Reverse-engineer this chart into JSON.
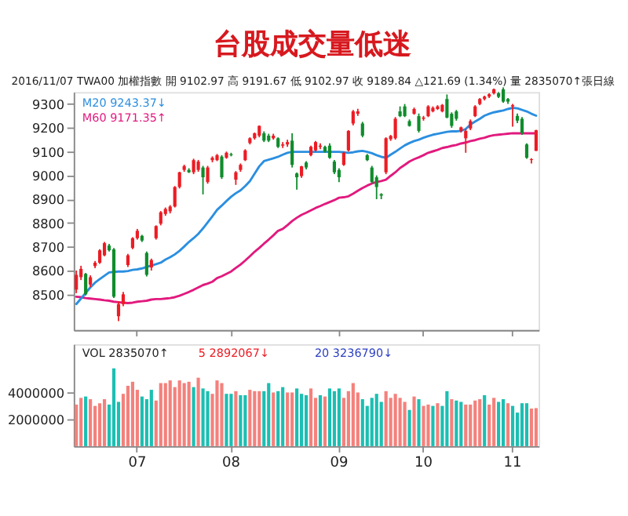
{
  "chart_data": [
    {
      "type": "candlestick",
      "title": "台股成交量低迷",
      "categories": [
        null,
        null,
        null,
        null,
        null,
        null,
        null,
        null,
        null,
        null,
        null,
        null,
        null,
        "07",
        null,
        null,
        null,
        null,
        null,
        null,
        null,
        null,
        null,
        null,
        null,
        null,
        null,
        null,
        null,
        null,
        null,
        null,
        null,
        "08",
        null,
        null,
        null,
        null,
        null,
        null,
        null,
        null,
        null,
        null,
        null,
        null,
        null,
        null,
        null,
        null,
        null,
        null,
        null,
        null,
        null,
        null,
        "09",
        null,
        null,
        null,
        null,
        null,
        null,
        null,
        null,
        null,
        null,
        null,
        null,
        null,
        null,
        null,
        null,
        null,
        "10",
        null,
        null,
        null,
        null,
        null,
        null,
        null,
        null,
        null,
        null,
        null,
        null,
        null,
        null,
        null,
        null,
        null,
        null,
        "11",
        null,
        null,
        null,
        null,
        null
      ],
      "ohlc": [
        [
          8520,
          8600,
          8505,
          8582
        ],
        [
          8572,
          8620,
          8560,
          8607
        ],
        [
          8586,
          8590,
          8495,
          8500
        ],
        [
          8541,
          8580,
          8530,
          8572
        ],
        [
          8619,
          8640,
          8610,
          8633
        ],
        [
          8633,
          8690,
          8628,
          8685
        ],
        [
          8664,
          8720,
          8660,
          8715
        ],
        [
          8705,
          8712,
          8680,
          8685
        ],
        [
          8689,
          8695,
          8485,
          8490
        ],
        [
          8408,
          8470,
          8387,
          8459
        ],
        [
          8459,
          8510,
          8450,
          8500
        ],
        [
          8623,
          8670,
          8615,
          8664
        ],
        [
          8695,
          8740,
          8690,
          8736
        ],
        [
          8736,
          8775,
          8730,
          8767
        ],
        [
          8746,
          8750,
          8720,
          8726
        ],
        [
          8674,
          8680,
          8575,
          8582
        ],
        [
          8613,
          8650,
          8600,
          8644
        ],
        [
          8736,
          8790,
          8730,
          8787
        ],
        [
          8797,
          8850,
          8790,
          8845
        ],
        [
          8838,
          8865,
          8830,
          8859
        ],
        [
          8849,
          8875,
          8840,
          8869
        ],
        [
          8869,
          8955,
          8865,
          8951
        ],
        [
          8951,
          9015,
          8945,
          9013
        ],
        [
          9023,
          9045,
          9015,
          9039
        ],
        [
          9023,
          9030,
          9010,
          9013
        ],
        [
          9013,
          9070,
          9005,
          9064
        ],
        [
          9023,
          9065,
          9015,
          9058
        ],
        [
          9033,
          9040,
          8920,
          8992
        ],
        [
          8972,
          9040,
          8965,
          9033
        ],
        [
          9064,
          9080,
          9055,
          9074
        ],
        [
          9064,
          9090,
          9060,
          9085
        ],
        [
          9079,
          9085,
          8985,
          8992
        ],
        [
          9074,
          9100,
          9070,
          9095
        ],
        [
          9089,
          9095,
          9080,
          9085
        ],
        [
          8982,
          9018,
          8960,
          9013
        ],
        [
          9023,
          9050,
          9015,
          9044
        ],
        [
          9064,
          9110,
          9060,
          9105
        ],
        [
          9136,
          9160,
          9130,
          9156
        ],
        [
          9156,
          9180,
          9150,
          9177
        ],
        [
          9167,
          9210,
          9160,
          9208
        ],
        [
          9177,
          9185,
          9140,
          9146
        ],
        [
          9167,
          9175,
          9140,
          9146
        ],
        [
          9156,
          9175,
          9150,
          9167
        ],
        [
          9156,
          9160,
          9115,
          9120
        ],
        [
          9125,
          9140,
          9115,
          9130
        ],
        [
          9130,
          9150,
          9120,
          9140
        ],
        [
          9146,
          9177,
          9033,
          9044
        ],
        [
          9008,
          9012,
          8940,
          8992
        ],
        [
          8997,
          9040,
          8990,
          9038
        ],
        [
          9054,
          9060,
          9025,
          9033
        ],
        [
          9085,
          9125,
          9080,
          9120
        ],
        [
          9105,
          9145,
          9100,
          9140
        ],
        [
          9120,
          9135,
          9110,
          9125
        ],
        [
          9120,
          9125,
          9095,
          9100
        ],
        [
          9125,
          9135,
          9070,
          9074
        ],
        [
          9058,
          9065,
          9005,
          9013
        ],
        [
          9023,
          9030,
          8972,
          8992
        ],
        [
          9044,
          9100,
          9040,
          9095
        ],
        [
          9105,
          9190,
          9100,
          9187
        ],
        [
          9218,
          9275,
          9210,
          9269
        ],
        [
          9259,
          9280,
          9250,
          9269
        ],
        [
          9218,
          9225,
          9160,
          9167
        ],
        [
          9085,
          9090,
          9060,
          9064
        ],
        [
          9033,
          9040,
          8965,
          8972
        ],
        [
          8992,
          9000,
          8900,
          8951
        ],
        [
          8921,
          8925,
          8900,
          8915
        ],
        [
          9013,
          9160,
          9005,
          9156
        ],
        [
          9152,
          9170,
          9145,
          9166
        ],
        [
          9156,
          9245,
          9150,
          9238
        ],
        [
          9269,
          9290,
          9245,
          9249
        ],
        [
          9290,
          9300,
          9245,
          9249
        ],
        [
          9228,
          9235,
          9205,
          9208
        ],
        [
          9259,
          9285,
          9255,
          9279
        ],
        [
          9249,
          9260,
          9180,
          9187
        ],
        [
          9238,
          9250,
          9230,
          9243
        ],
        [
          9249,
          9295,
          9245,
          9290
        ],
        [
          9269,
          9290,
          9265,
          9284
        ],
        [
          9279,
          9295,
          9275,
          9290
        ],
        [
          9269,
          9300,
          9265,
          9296
        ],
        [
          9321,
          9340,
          9240,
          9243
        ],
        [
          9259,
          9265,
          9200,
          9208
        ],
        [
          9269,
          9275,
          9230,
          9238
        ],
        [
          9187,
          9205,
          9180,
          9202
        ],
        [
          9156,
          9195,
          9095,
          9187
        ],
        [
          9197,
          9235,
          9190,
          9228
        ],
        [
          9249,
          9295,
          9245,
          9290
        ],
        [
          9300,
          9325,
          9295,
          9321
        ],
        [
          9321,
          9335,
          9315,
          9331
        ],
        [
          9331,
          9345,
          9325,
          9341
        ],
        [
          9345,
          9365,
          9340,
          9362
        ],
        [
          9345,
          9350,
          9325,
          9330
        ],
        [
          9362,
          9370,
          9305,
          9310
        ],
        [
          9321,
          9325,
          9300,
          9310
        ],
        [
          9290,
          9300,
          9205,
          9295
        ],
        [
          9250,
          9260,
          9220,
          9230
        ],
        [
          9238,
          9245,
          9170,
          9177
        ],
        [
          9130,
          9135,
          9070,
          9074
        ],
        [
          9065,
          9072,
          9050,
          9068
        ],
        [
          9102.97,
          9191.67,
          9102.97,
          9189.84
        ]
      ],
      "colors": [
        "#ec1c24",
        "#ec1c24",
        "#108c2c",
        "#ec1c24",
        "#ec1c24",
        "#ec1c24",
        "#ec1c24",
        "#108c2c",
        "#108c2c",
        "#ec1c24",
        "#ec1c24",
        "#ec1c24",
        "#ec1c24",
        "#ec1c24",
        "#108c2c",
        "#108c2c",
        "#ec1c24",
        "#ec1c24",
        "#ec1c24",
        "#ec1c24",
        "#ec1c24",
        "#ec1c24",
        "#ec1c24",
        "#ec1c24",
        "#108c2c",
        "#ec1c24",
        "#ec1c24",
        "#108c2c",
        "#ec1c24",
        "#ec1c24",
        "#ec1c24",
        "#108c2c",
        "#ec1c24",
        "#108c2c",
        "#ec1c24",
        "#ec1c24",
        "#ec1c24",
        "#ec1c24",
        "#ec1c24",
        "#ec1c24",
        "#108c2c",
        "#108c2c",
        "#ec1c24",
        "#108c2c",
        "#ec1c24",
        "#ec1c24",
        "#108c2c",
        "#108c2c",
        "#ec1c24",
        "#108c2c",
        "#ec1c24",
        "#ec1c24",
        "#ec1c24",
        "#108c2c",
        "#108c2c",
        "#108c2c",
        "#108c2c",
        "#ec1c24",
        "#ec1c24",
        "#ec1c24",
        "#ec1c24",
        "#108c2c",
        "#108c2c",
        "#108c2c",
        "#108c2c",
        "#108c2c",
        "#ec1c24",
        "#ec1c24",
        "#ec1c24",
        "#108c2c",
        "#108c2c",
        "#108c2c",
        "#ec1c24",
        "#108c2c",
        "#ec1c24",
        "#ec1c24",
        "#ec1c24",
        "#ec1c24",
        "#ec1c24",
        "#108c2c",
        "#108c2c",
        "#108c2c",
        "#ec1c24",
        "#ec1c24",
        "#ec1c24",
        "#ec1c24",
        "#ec1c24",
        "#ec1c24",
        "#ec1c24",
        "#ec1c24",
        "#108c2c",
        "#108c2c",
        "#108c2c",
        "#ec1c24",
        "#108c2c",
        "#108c2c",
        "#108c2c",
        "#ec1c24",
        "#ec1c24"
      ],
      "series": [
        {
          "type": "line",
          "color": "#2b8fe0",
          "line_style": "solid",
          "values": [
            8459,
            8482,
            8506,
            8529,
            8549,
            8564,
            8578,
            8592,
            8594,
            8596,
            8596,
            8598,
            8603,
            8605,
            8609,
            8615,
            8621,
            8627,
            8633,
            8646,
            8656,
            8668,
            8683,
            8701,
            8720,
            8736,
            8754,
            8777,
            8802,
            8828,
            8855,
            8873,
            8892,
            8910,
            8925,
            8937,
            8955,
            8976,
            9007,
            9038,
            9060,
            9066,
            9072,
            9078,
            9087,
            9095,
            9099,
            9099,
            9099,
            9099,
            9099,
            9099,
            9099,
            9099,
            9099,
            9099,
            9099,
            9097,
            9095,
            9097,
            9101,
            9103,
            9099,
            9093,
            9085,
            9078,
            9074,
            9087,
            9099,
            9113,
            9126,
            9136,
            9144,
            9150,
            9158,
            9165,
            9171,
            9175,
            9179,
            9183,
            9185,
            9185,
            9187,
            9195,
            9214,
            9226,
            9238,
            9251,
            9259,
            9265,
            9269,
            9273,
            9279,
            9284,
            9282,
            9275,
            9269,
            9259,
            9251
          ]
        },
        {
          "type": "line",
          "color": "#e2197e",
          "line_style": "solid",
          "values": [
            8490,
            8488,
            8484,
            8482,
            8480,
            8478,
            8475,
            8473,
            8469,
            8467,
            8465,
            8463,
            8465,
            8469,
            8471,
            8473,
            8478,
            8480,
            8480,
            8482,
            8484,
            8488,
            8494,
            8502,
            8510,
            8519,
            8529,
            8539,
            8545,
            8553,
            8568,
            8576,
            8586,
            8596,
            8611,
            8625,
            8642,
            8660,
            8679,
            8695,
            8713,
            8730,
            8748,
            8767,
            8775,
            8791,
            8808,
            8822,
            8834,
            8843,
            8853,
            8863,
            8871,
            8880,
            8888,
            8896,
            8906,
            8908,
            8912,
            8923,
            8935,
            8947,
            8957,
            8966,
            8972,
            8976,
            8982,
            8998,
            9013,
            9031,
            9044,
            9058,
            9068,
            9076,
            9085,
            9095,
            9101,
            9107,
            9115,
            9119,
            9124,
            9128,
            9134,
            9138,
            9144,
            9148,
            9154,
            9158,
            9165,
            9169,
            9171,
            9173,
            9175,
            9177,
            9177,
            9177,
            9177,
            9177,
            9177
          ]
        }
      ],
      "ylim": [
        8350,
        9350
      ],
      "yticks": [
        8500,
        8600,
        8700,
        8800,
        8900,
        9000,
        9100,
        9200,
        9300
      ],
      "tick_labels": "y",
      "grid": false,
      "annotations": [
        "2016/11/07 TWA00 加權指數 開 9102.97 高 9191.67 低 9102.97 收 9189.84 △121.69 (1.34%) 量 2835070↑張日線",
        "M20 9243.37↓",
        "M60 9171.35↑"
      ]
    },
    {
      "type": "bar",
      "categories": [
        null,
        null,
        null,
        null,
        null,
        null,
        null,
        null,
        null,
        null,
        null,
        null,
        null,
        "07",
        null,
        null,
        null,
        null,
        null,
        null,
        null,
        null,
        null,
        null,
        null,
        null,
        null,
        null,
        null,
        null,
        null,
        null,
        null,
        "08",
        null,
        null,
        null,
        null,
        null,
        null,
        null,
        null,
        null,
        null,
        null,
        null,
        null,
        null,
        null,
        null,
        null,
        null,
        null,
        null,
        null,
        null,
        "09",
        null,
        null,
        null,
        null,
        null,
        null,
        null,
        null,
        null,
        null,
        null,
        null,
        null,
        null,
        null,
        null,
        null,
        "10",
        null,
        null,
        null,
        null,
        null,
        null,
        null,
        null,
        null,
        null,
        null,
        null,
        null,
        null,
        null,
        null,
        null,
        null,
        "11",
        null,
        null,
        null,
        null,
        null
      ],
      "values": [
        3100000,
        3600000,
        3700000,
        3500000,
        3000000,
        3200000,
        3500000,
        3100000,
        5800000,
        3300000,
        3900000,
        4500000,
        4800000,
        4200000,
        3700000,
        3500000,
        4200000,
        3400000,
        4700000,
        4700000,
        4900000,
        4400000,
        4900000,
        4700000,
        4800000,
        4400000,
        5100000,
        4300000,
        4100000,
        3900000,
        4900000,
        4700000,
        3900000,
        3900000,
        4100000,
        3800000,
        3800000,
        4200000,
        4100000,
        4100000,
        4100000,
        4700000,
        4000000,
        4100000,
        4400000,
        4000000,
        4000000,
        4300000,
        3900000,
        3800000,
        4300000,
        3600000,
        3800000,
        3700000,
        4300000,
        4100000,
        4300000,
        3600000,
        4100000,
        4700000,
        4000000,
        3500000,
        3000000,
        3600000,
        3900000,
        3300000,
        4100000,
        3600000,
        3900000,
        3600000,
        3300000,
        2700000,
        3700000,
        3500000,
        3000000,
        3100000,
        3000000,
        3200000,
        3000000,
        4100000,
        3500000,
        3400000,
        3300000,
        3100000,
        3100000,
        3400000,
        3500000,
        3800000,
        3100000,
        3600000,
        3300000,
        3500000,
        3200000,
        3000000,
        2500000,
        3200000,
        3200000,
        2800000,
        2835070
      ],
      "colors": [
        "#f4817c",
        "#f4817c",
        "#1bbfb2",
        "#f4817c",
        "#f4817c",
        "#f4817c",
        "#f4817c",
        "#1bbfb2",
        "#1bbfb2",
        "#1bbfb2",
        "#f4817c",
        "#f4817c",
        "#f4817c",
        "#f4817c",
        "#1bbfb2",
        "#1bbfb2",
        "#1bbfb2",
        "#f4817c",
        "#f4817c",
        "#f4817c",
        "#f4817c",
        "#f4817c",
        "#f4817c",
        "#f4817c",
        "#f4817c",
        "#1bbfb2",
        "#f4817c",
        "#1bbfb2",
        "#1bbfb2",
        "#f4817c",
        "#f4817c",
        "#f4817c",
        "#1bbfb2",
        "#1bbfb2",
        "#f4817c",
        "#1bbfb2",
        "#1bbfb2",
        "#f4817c",
        "#f4817c",
        "#f4817c",
        "#1bbfb2",
        "#1bbfb2",
        "#f4817c",
        "#1bbfb2",
        "#1bbfb2",
        "#f4817c",
        "#f4817c",
        "#1bbfb2",
        "#1bbfb2",
        "#1bbfb2",
        "#f4817c",
        "#f4817c",
        "#1bbfb2",
        "#f4817c",
        "#1bbfb2",
        "#1bbfb2",
        "#1bbfb2",
        "#f4817c",
        "#f4817c",
        "#f4817c",
        "#f4817c",
        "#1bbfb2",
        "#1bbfb2",
        "#1bbfb2",
        "#1bbfb2",
        "#1bbfb2",
        "#f4817c",
        "#f4817c",
        "#f4817c",
        "#f4817c",
        "#f4817c",
        "#1bbfb2",
        "#f4817c",
        "#1bbfb2",
        "#f4817c",
        "#f4817c",
        "#1bbfb2",
        "#f4817c",
        "#1bbfb2",
        "#1bbfb2",
        "#f4817c",
        "#1bbfb2",
        "#1bbfb2",
        "#f4817c",
        "#f4817c",
        "#f4817c",
        "#f4817c",
        "#1bbfb2",
        "#f4817c",
        "#f4817c",
        "#1bbfb2",
        "#1bbfb2",
        "#f4817c",
        "#1bbfb2",
        "#1bbfb2",
        "#1bbfb2",
        "#1bbfb2",
        "#f4817c",
        "#f4817c"
      ],
      "ylim": [
        0,
        7600000
      ],
      "yticks": [
        2000000,
        4000000
      ],
      "grid": false,
      "annotations": [
        "VOL 2835070↑",
        "5 2892067↓",
        "20 3236790↓"
      ]
    }
  ]
}
